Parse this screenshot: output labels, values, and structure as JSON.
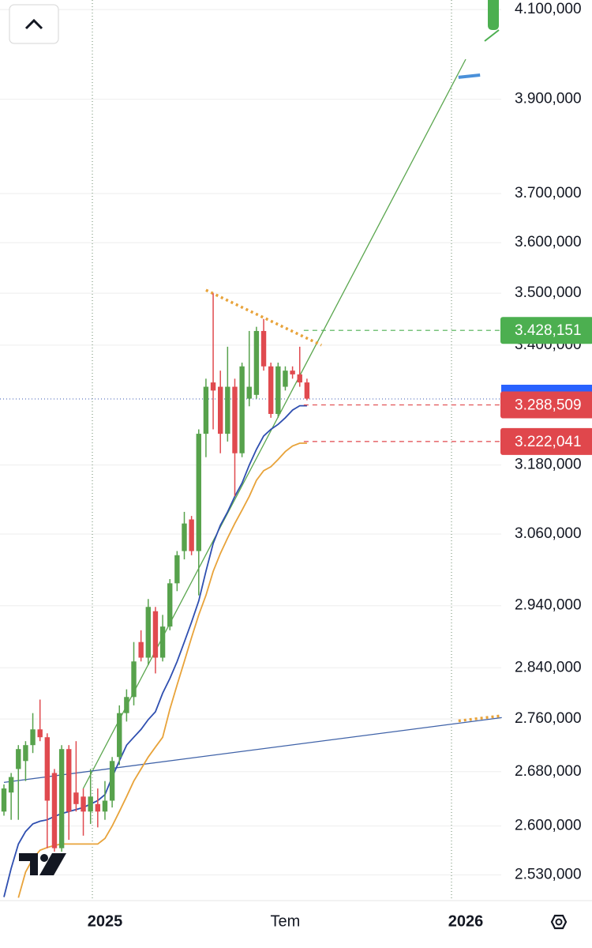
{
  "chart_data": {
    "type": "candlestick",
    "log_scale": true,
    "grid": true,
    "up_color": "#57a24c",
    "down_color": "#e04a4f",
    "ylim": [
      2494000,
      4122000
    ],
    "yticks": [
      {
        "value": 4100000,
        "label": "4.100,000"
      },
      {
        "value": 3900000,
        "label": "3.900,000"
      },
      {
        "value": 3700000,
        "label": "3.700,000"
      },
      {
        "value": 3600000,
        "label": "3.600,000"
      },
      {
        "value": 3500000,
        "label": "3.500,000"
      },
      {
        "value": 3400000,
        "label": "3.400,000"
      },
      {
        "value": 3180000,
        "label": "3.180,000"
      },
      {
        "value": 3060000,
        "label": "3.060,000"
      },
      {
        "value": 2940000,
        "label": "2.940,000"
      },
      {
        "value": 2840000,
        "label": "2.840,000"
      },
      {
        "value": 2760000,
        "label": "2.760,000"
      },
      {
        "value": 2680000,
        "label": "2.680,000"
      },
      {
        "value": 2600000,
        "label": "2.600,000"
      },
      {
        "value": 2530000,
        "label": "2.530,000"
      }
    ],
    "categories": [
      null,
      null,
      null,
      null,
      null,
      null,
      null,
      null,
      null,
      null,
      null,
      null,
      null,
      null,
      "2025",
      null,
      null,
      null,
      null,
      null,
      null,
      null,
      null,
      null,
      null,
      null,
      null,
      null,
      null,
      null,
      null,
      null,
      null,
      null,
      null,
      null,
      null,
      null,
      null,
      "Tem",
      null,
      null,
      null,
      null,
      null,
      null,
      null,
      null,
      null,
      null,
      null,
      null,
      null,
      null,
      null,
      null,
      null,
      null,
      null,
      null,
      null,
      null,
      null,
      null,
      "2026",
      null,
      null,
      null,
      null,
      null
    ],
    "open": [
      2621000,
      2649000,
      2684000,
      2696000,
      2720000,
      2744000,
      2732000,
      2678000,
      2568000,
      2714000,
      2649000,
      2643000,
      2621000,
      2632000,
      2621000,
      2637000,
      2702000,
      2769000,
      2794000,
      2881000,
      2856000,
      2931000,
      2856000,
      2906000,
      2977000,
      3031000,
      3085000,
      3031000,
      3236000,
      3330000,
      3322000,
      3236000,
      3322000,
      3201000,
      3300000,
      3307000,
      3427000,
      3360000,
      3272000,
      3322000,
      3352000,
      3345000,
      3330000,
      null,
      null,
      null,
      null,
      null,
      null,
      null,
      null,
      null,
      null,
      null,
      null,
      null,
      null,
      null,
      null,
      null,
      null,
      null,
      null,
      null,
      null,
      null,
      null,
      null,
      null,
      null
    ],
    "high": [
      2661000,
      2678000,
      2720000,
      2726000,
      2769000,
      2790000,
      2738000,
      2684000,
      2720000,
      2720000,
      2726000,
      2655000,
      2684000,
      2655000,
      2666000,
      2702000,
      2781000,
      2806000,
      2881000,
      2900000,
      2951000,
      2938000,
      2925000,
      2984000,
      3031000,
      3098000,
      3091000,
      3244000,
      3337000,
      3500000,
      3352000,
      3397000,
      3337000,
      3367000,
      3427000,
      3435000,
      3450000,
      3367000,
      3367000,
      3360000,
      3360000,
      3397000,
      3337000,
      null,
      null,
      null,
      null,
      null,
      null,
      null,
      null,
      null,
      null,
      null,
      null,
      null,
      null,
      null,
      null,
      null,
      null,
      null,
      null,
      null,
      null,
      null,
      null,
      null,
      null,
      null
    ],
    "low": [
      2615000,
      2609000,
      2609000,
      2666000,
      2708000,
      2726000,
      2568000,
      2563000,
      2563000,
      2580000,
      2621000,
      2586000,
      2603000,
      2598000,
      2609000,
      2627000,
      2690000,
      2756000,
      2781000,
      2850000,
      2844000,
      2831000,
      2850000,
      2900000,
      2964000,
      3017000,
      3024000,
      2957000,
      3194000,
      3244000,
      3201000,
      3222000,
      3125000,
      3194000,
      3286000,
      3300000,
      3352000,
      3265000,
      3265000,
      3315000,
      3337000,
      3322000,
      3297000,
      null,
      null,
      null,
      null,
      null,
      null,
      null,
      null,
      null,
      null,
      null,
      null,
      null,
      null,
      null,
      null,
      null,
      null,
      null,
      null,
      null,
      null,
      null,
      null,
      null,
      null,
      null
    ],
    "close": [
      2655000,
      2672000,
      2714000,
      2720000,
      2744000,
      2732000,
      2637000,
      2568000,
      2714000,
      2621000,
      2632000,
      2621000,
      2643000,
      2621000,
      2637000,
      2696000,
      2769000,
      2794000,
      2850000,
      2856000,
      2938000,
      2856000,
      2906000,
      2977000,
      3024000,
      3078000,
      3031000,
      3236000,
      3322000,
      3315000,
      3236000,
      3322000,
      3201000,
      3360000,
      3322000,
      3427000,
      3360000,
      3272000,
      3360000,
      3352000,
      3345000,
      3330000,
      3300000,
      null,
      null,
      null,
      null,
      null,
      null,
      null,
      null,
      null,
      null,
      null,
      null,
      null,
      null,
      null,
      null,
      null,
      null,
      null,
      null,
      null,
      null,
      null,
      null,
      null,
      null,
      null
    ],
    "series": [
      {
        "color": "#2f4fb0",
        "values": [
          2499000,
          2539000,
          2574000,
          2592000,
          2603000,
          2607000,
          2609000,
          2614000,
          2618000,
          2621000,
          2624000,
          2627000,
          2632000,
          2637000,
          2646000,
          2672000,
          2696000,
          2720000,
          2732000,
          2744000,
          2759000,
          2771000,
          2800000,
          2823000,
          2850000,
          2881000,
          2913000,
          2948000,
          2997000,
          3044000,
          3075000,
          3098000,
          3125000,
          3148000,
          3180000,
          3208000,
          3232000,
          3244000,
          3253000,
          3265000,
          3279000,
          3287000,
          3287000,
          null,
          null,
          null,
          null,
          null,
          null,
          null,
          null,
          null,
          null,
          null,
          null,
          null,
          null,
          null,
          null,
          null,
          null,
          null,
          null,
          null,
          null,
          null,
          null,
          null,
          null,
          null
        ]
      },
      {
        "color": "#e8a33a",
        "values": [
          null,
          null,
          2498000,
          2534000,
          2553000,
          2565000,
          2569000,
          2572000,
          2574000,
          2574000,
          2574000,
          2574000,
          2574000,
          2574000,
          2582000,
          2600000,
          2621000,
          2643000,
          2666000,
          2684000,
          2702000,
          2717000,
          2732000,
          2775000,
          2813000,
          2850000,
          2888000,
          2925000,
          2957000,
          2997000,
          3027000,
          3053000,
          3078000,
          3101000,
          3125000,
          3153000,
          3170000,
          3177000,
          3190000,
          3204000,
          3214000,
          3219000,
          3219000,
          null,
          null,
          null,
          null,
          null,
          null,
          null,
          null,
          null,
          null,
          null,
          null,
          null,
          null,
          null,
          null,
          null,
          null,
          null,
          null,
          null,
          null,
          null,
          null,
          null,
          null,
          null
        ]
      }
    ],
    "drawings": [
      {
        "color": "#5aa64e",
        "style": "solid",
        "x": [
          11,
          64
        ],
        "values": [
          2655000,
          3988000
        ]
      },
      {
        "color": "#3f62a8",
        "style": "solid",
        "x": [
          0,
          69
        ],
        "values": [
          2664000,
          2762000
        ]
      },
      {
        "color": "#e8a33a",
        "style": "dotted",
        "x": [
          28,
          44
        ],
        "values": [
          3506000,
          3400000
        ]
      },
      {
        "color": "#e8a33a",
        "style": "dotted",
        "x": [
          63,
          69
        ],
        "values": [
          2757000,
          2765000
        ]
      },
      {
        "color": "#4a90d9",
        "style": "bold",
        "x": [
          63,
          66
        ],
        "values": [
          3948000,
          3953000
        ]
      }
    ],
    "price_lines": [
      {
        "color": "#4caf50",
        "value": 3428151,
        "label": "3.428,151"
      },
      {
        "color": "#e0474c",
        "value": 3288509,
        "label": "3.288,509"
      },
      {
        "color": "#e0474c",
        "value": 3222041,
        "label": "3.222,041"
      }
    ]
  }
}
